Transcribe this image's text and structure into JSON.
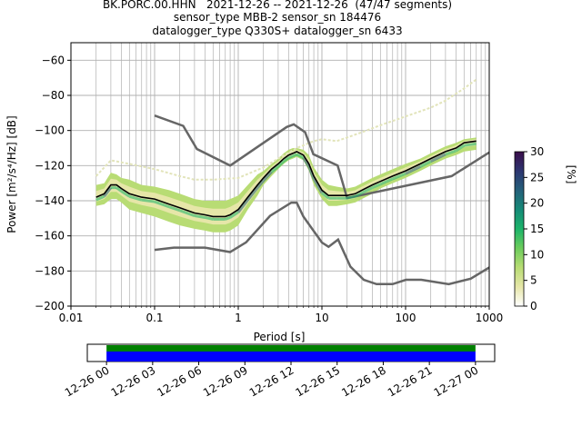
{
  "chart_data": {
    "type": "heatmap",
    "title_lines": [
      "BK.PORC.00.HHN   2021-12-26 -- 2021-12-26  (47/47 segments)",
      "sensor_type MBB-2 sensor_sn 184476",
      "datalogger_type Q330S+ datalogger_sn 6433"
    ],
    "xlabel": "Period [s]",
    "ylabel": "Power [m²/s⁴/Hz] [dB]",
    "xscale": "log",
    "xlim": [
      0.01,
      1000
    ],
    "ylim": [
      -200,
      -50
    ],
    "x_ticks": [
      0.01,
      0.1,
      1,
      10,
      100,
      1000
    ],
    "x_tick_labels": [
      "0.01",
      "0.1",
      "1",
      "10",
      "100",
      "1000"
    ],
    "y_ticks": [
      -200,
      -180,
      -160,
      -140,
      -120,
      -100,
      -80,
      -60
    ],
    "y_tick_labels": [
      "−200",
      "−180",
      "−160",
      "−140",
      "−120",
      "−100",
      "−80",
      "−60"
    ],
    "grid": true,
    "colorbar": {
      "label": "[%]",
      "range": [
        0,
        30
      ],
      "ticks": [
        0,
        5,
        10,
        15,
        20,
        25,
        30
      ],
      "colors": [
        "#ffffff",
        "#e6e6a8",
        "#b8dc74",
        "#6ccc5c",
        "#1cb46a",
        "#168a78",
        "#25607a",
        "#2d3570",
        "#3a0d4a"
      ]
    },
    "mode_curve": {
      "period": [
        0.02,
        0.025,
        0.03,
        0.035,
        0.04,
        0.05,
        0.07,
        0.1,
        0.15,
        0.2,
        0.3,
        0.4,
        0.5,
        0.6,
        0.7,
        0.8,
        1,
        1.3,
        1.7,
        2,
        2.5,
        3,
        3.5,
        4,
        4.5,
        5,
        6,
        7,
        8,
        10,
        12,
        15,
        20,
        25,
        30,
        40,
        50,
        70,
        100,
        150,
        200,
        300,
        400,
        500,
        700
      ],
      "power": [
        -138,
        -136,
        -131,
        -131,
        -133,
        -136,
        -138,
        -139,
        -142,
        -144,
        -147,
        -148,
        -149,
        -149,
        -149,
        -148,
        -145,
        -138,
        -131,
        -127,
        -122,
        -119,
        -116,
        -114,
        -113,
        -112,
        -114,
        -119,
        -126,
        -134,
        -137,
        -137,
        -137,
        -136,
        -134,
        -131,
        -129,
        -126,
        -123,
        -119,
        -116,
        -112,
        -110,
        -107,
        -106
      ]
    },
    "pdf_band": {
      "period": [
        0.02,
        0.025,
        0.03,
        0.035,
        0.04,
        0.05,
        0.07,
        0.1,
        0.15,
        0.2,
        0.3,
        0.4,
        0.5,
        0.6,
        0.7,
        0.8,
        1,
        1.3,
        1.7,
        2,
        2.5,
        3,
        3.5,
        4,
        4.5,
        5,
        6,
        7,
        8,
        10,
        12,
        15,
        20,
        25,
        30,
        40,
        50,
        70,
        100,
        150,
        200,
        300,
        400,
        500,
        700
      ],
      "lower": [
        -143,
        -142,
        -139,
        -139,
        -141,
        -145,
        -147,
        -149,
        -152,
        -154,
        -156,
        -157,
        -158,
        -158,
        -158,
        -157,
        -154,
        -145,
        -137,
        -131,
        -126,
        -122,
        -119,
        -117,
        -116,
        -115,
        -117,
        -123,
        -131,
        -139,
        -143,
        -143,
        -142,
        -141,
        -139,
        -136,
        -133,
        -130,
        -127,
        -123,
        -120,
        -116,
        -114,
        -112,
        -111
      ],
      "upper": [
        -131,
        -130,
        -124,
        -125,
        -127,
        -128,
        -131,
        -132,
        -134,
        -136,
        -139,
        -140,
        -140,
        -140,
        -140,
        -139,
        -137,
        -131,
        -125,
        -123,
        -119,
        -116,
        -113,
        -111,
        -110,
        -110,
        -111,
        -114,
        -121,
        -128,
        -131,
        -132,
        -133,
        -132,
        -130,
        -127,
        -125,
        -122,
        -119,
        -116,
        -113,
        -109,
        -107,
        -105,
        -104
      ]
    },
    "faint_upper_trace": {
      "period": [
        0.02,
        0.03,
        0.05,
        0.1,
        0.2,
        0.3,
        0.5,
        1,
        2,
        3,
        5,
        8,
        10,
        15,
        20,
        30,
        50,
        100,
        200,
        300,
        500,
        700
      ],
      "power": [
        -126,
        -117,
        -119,
        -122,
        -126,
        -128,
        -128,
        -127,
        -121,
        -116,
        -110,
        -106,
        -105,
        -106,
        -104,
        -101,
        -97,
        -92,
        -87,
        -83,
        -76,
        -71
      ]
    },
    "nhnm": {
      "period": [
        0.1,
        0.22,
        0.32,
        0.8,
        3.8,
        4.6,
        6.3,
        7.9,
        15.4,
        20,
        354.8,
        1000
      ],
      "power": [
        -91.5,
        -97.4,
        -110.5,
        -120,
        -98,
        -96.5,
        -101,
        -113.5,
        -120,
        -138.5,
        -126,
        -112.5
      ]
    },
    "nlnm": {
      "period": [
        0.1,
        0.17,
        0.4,
        0.8,
        1.24,
        2.4,
        4.3,
        5,
        6,
        10,
        12,
        15.6,
        21.9,
        31.6,
        45,
        70,
        101,
        154,
        328,
        600,
        1000
      ],
      "power": [
        -168,
        -166.7,
        -166.7,
        -169.2,
        -163.7,
        -148.6,
        -141.1,
        -141.1,
        -149,
        -163.8,
        -166.2,
        -162.1,
        -177.5,
        -185,
        -187.5,
        -187.5,
        -185,
        -185,
        -187.5,
        -184.4,
        -178
      ]
    },
    "timeline": {
      "type": "coverage",
      "start_label": "12-26 00",
      "tick_labels": [
        "12-26 00",
        "12-26 03",
        "12-26 06",
        "12-26 09",
        "12-26 12",
        "12-26 15",
        "12-26 18",
        "12-26 21",
        "12-27 00"
      ],
      "tick_hours": [
        0,
        3,
        6,
        9,
        12,
        15,
        18,
        21,
        24
      ],
      "range_hours": [
        -1.25,
        25.25
      ],
      "coverage_hours": [
        0,
        24
      ],
      "colors": {
        "green": "#008000",
        "blue": "#0000ff"
      }
    }
  }
}
